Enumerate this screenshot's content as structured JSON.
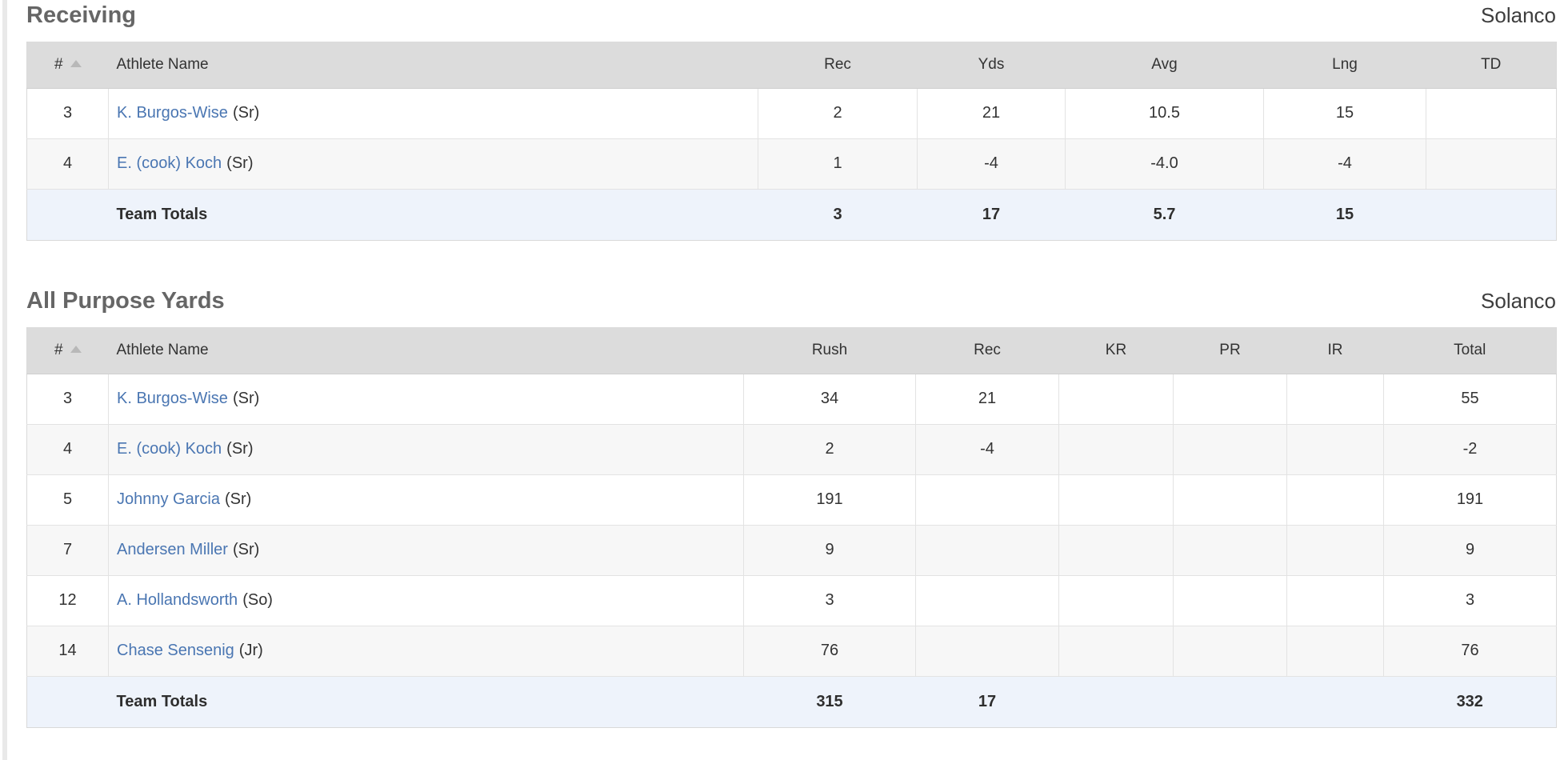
{
  "colors": {
    "link_blue": "#4a76b2",
    "header_gray": "#dcdcdc",
    "totals_blue": "#eef3fb",
    "heading_gray": "#666666",
    "team_text": "#3d3d3d",
    "sort_arrow": "#b8b8b8"
  },
  "sections": [
    {
      "title": "Receiving",
      "team": "Solanco",
      "columns": [
        {
          "key": "num",
          "label": "#",
          "sort_icon": "triangle-up"
        },
        {
          "key": "athlete-name",
          "label": "Athlete Name"
        },
        {
          "key": "rec",
          "label": "Rec"
        },
        {
          "key": "yds",
          "label": "Yds"
        },
        {
          "key": "avg",
          "label": "Avg"
        },
        {
          "key": "lng",
          "label": "Lng"
        },
        {
          "key": "td",
          "label": "TD"
        }
      ],
      "rows": [
        {
          "num": "3",
          "name": "K. Burgos-Wise",
          "class_year": "(Sr)",
          "values": [
            "2",
            "21",
            "10.5",
            "15",
            ""
          ]
        },
        {
          "num": "4",
          "name": "E. (cook) Koch",
          "class_year": "(Sr)",
          "values": [
            "1",
            "-4",
            "-4.0",
            "-4",
            ""
          ]
        }
      ],
      "totals": {
        "label": "Team Totals",
        "values": [
          "3",
          "17",
          "5.7",
          "15",
          ""
        ]
      }
    },
    {
      "title": "All Purpose Yards",
      "team": "Solanco",
      "columns": [
        {
          "key": "num",
          "label": "#",
          "sort_icon": "triangle-up"
        },
        {
          "key": "athlete-name",
          "label": "Athlete Name"
        },
        {
          "key": "rush",
          "label": "Rush"
        },
        {
          "key": "rec",
          "label": "Rec"
        },
        {
          "key": "kr",
          "label": "KR"
        },
        {
          "key": "pr",
          "label": "PR"
        },
        {
          "key": "ir",
          "label": "IR"
        },
        {
          "key": "total",
          "label": "Total"
        }
      ],
      "rows": [
        {
          "num": "3",
          "name": "K. Burgos-Wise",
          "class_year": "(Sr)",
          "values": [
            "34",
            "21",
            "",
            "",
            "",
            "55"
          ]
        },
        {
          "num": "4",
          "name": "E. (cook) Koch",
          "class_year": "(Sr)",
          "values": [
            "2",
            "-4",
            "",
            "",
            "",
            "-2"
          ]
        },
        {
          "num": "5",
          "name": "Johnny Garcia",
          "class_year": "(Sr)",
          "values": [
            "191",
            "",
            "",
            "",
            "",
            "191"
          ]
        },
        {
          "num": "7",
          "name": "Andersen Miller",
          "class_year": "(Sr)",
          "values": [
            "9",
            "",
            "",
            "",
            "",
            "9"
          ]
        },
        {
          "num": "12",
          "name": "A. Hollandsworth",
          "class_year": "(So)",
          "values": [
            "3",
            "",
            "",
            "",
            "",
            "3"
          ]
        },
        {
          "num": "14",
          "name": "Chase Sensenig",
          "class_year": "(Jr)",
          "values": [
            "76",
            "",
            "",
            "",
            "",
            "76"
          ]
        }
      ],
      "totals": {
        "label": "Team Totals",
        "values": [
          "315",
          "17",
          "",
          "",
          "",
          "332"
        ]
      }
    }
  ]
}
